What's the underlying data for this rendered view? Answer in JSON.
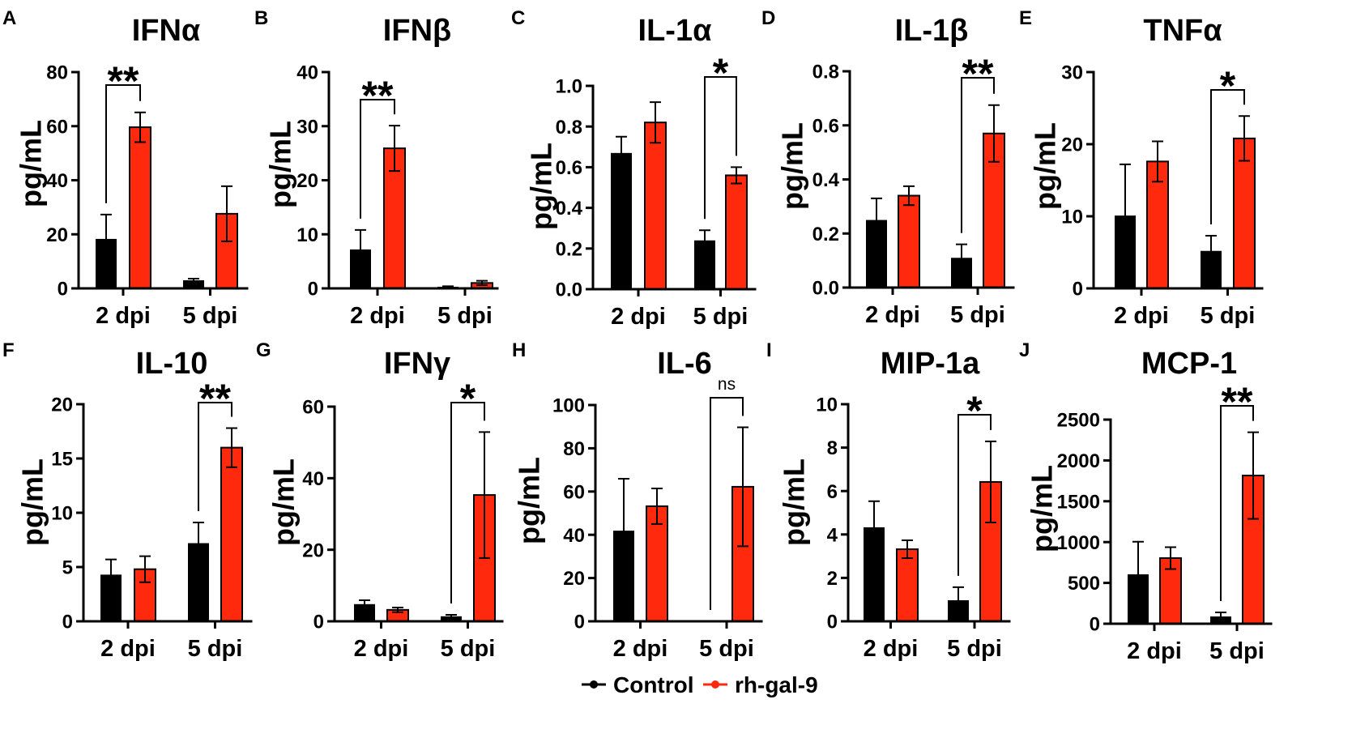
{
  "legend": [
    {
      "name": "Control",
      "color": "#000000"
    },
    {
      "name": "rh-gal-9",
      "color": "#FF2A0D"
    }
  ],
  "chart_data": [
    {
      "panel": "A",
      "type": "bar",
      "title": "IFNα",
      "ylabel": "pg/mL",
      "categories": [
        "2 dpi",
        "5 dpi"
      ],
      "ylim": [
        0,
        80
      ],
      "yticks": [
        "0",
        "20",
        "40",
        "60",
        "80"
      ],
      "series": [
        {
          "name": "Control",
          "values": [
            18.3,
            3.0
          ],
          "errors": [
            9.0,
            0.6
          ]
        },
        {
          "name": "rh-gal-9",
          "values": [
            59.6,
            27.6
          ],
          "errors": [
            5.5,
            10.2
          ]
        }
      ],
      "significance": [
        {
          "category": "2 dpi",
          "label": "**"
        }
      ]
    },
    {
      "panel": "B",
      "type": "bar",
      "title": "IFNβ",
      "ylabel": "pg/mL",
      "categories": [
        "2 dpi",
        "5 dpi"
      ],
      "ylim": [
        0,
        40
      ],
      "yticks": [
        "0",
        "10",
        "20",
        "30",
        "40"
      ],
      "series": [
        {
          "name": "Control",
          "values": [
            7.2,
            0.3
          ],
          "errors": [
            3.6,
            0.1
          ]
        },
        {
          "name": "rh-gal-9",
          "values": [
            25.9,
            1.0
          ],
          "errors": [
            4.2,
            0.4
          ]
        }
      ],
      "significance": [
        {
          "category": "2 dpi",
          "label": "**"
        }
      ]
    },
    {
      "panel": "C",
      "type": "bar",
      "title": "IL-1α",
      "ylabel": "pg/mL",
      "categories": [
        "2 dpi",
        "5 dpi"
      ],
      "ylim": [
        0,
        1.0
      ],
      "yticks": [
        "0.0",
        "0.2",
        "0.4",
        "0.6",
        "0.8",
        "1.0"
      ],
      "series": [
        {
          "name": "Control",
          "values": [
            0.67,
            0.24
          ],
          "errors": [
            0.08,
            0.05
          ]
        },
        {
          "name": "rh-gal-9",
          "values": [
            0.82,
            0.56
          ],
          "errors": [
            0.1,
            0.04
          ]
        }
      ],
      "significance": [
        {
          "category": "5 dpi",
          "label": "*"
        }
      ]
    },
    {
      "panel": "D",
      "type": "bar",
      "title": "IL-1β",
      "ylabel": "pg/mL",
      "categories": [
        "2 dpi",
        "5 dpi"
      ],
      "ylim": [
        0,
        0.8
      ],
      "yticks": [
        "0.0",
        "0.2",
        "0.4",
        "0.6",
        "0.8"
      ],
      "series": [
        {
          "name": "Control",
          "values": [
            0.25,
            0.11
          ],
          "errors": [
            0.08,
            0.05
          ]
        },
        {
          "name": "rh-gal-9",
          "values": [
            0.34,
            0.57
          ],
          "errors": [
            0.035,
            0.105
          ]
        }
      ],
      "significance": [
        {
          "category": "5 dpi",
          "label": "**"
        }
      ]
    },
    {
      "panel": "E",
      "type": "bar",
      "title": "TNFα",
      "ylabel": "pg/mL",
      "categories": [
        "2 dpi",
        "5 dpi"
      ],
      "ylim": [
        0,
        30
      ],
      "yticks": [
        "0",
        "10",
        "20",
        "30"
      ],
      "series": [
        {
          "name": "Control",
          "values": [
            10.1,
            5.2
          ],
          "errors": [
            7.1,
            2.1
          ]
        },
        {
          "name": "rh-gal-9",
          "values": [
            17.6,
            20.8
          ],
          "errors": [
            2.8,
            3.1
          ]
        }
      ],
      "significance": [
        {
          "category": "5 dpi",
          "label": "*"
        }
      ]
    },
    {
      "panel": "F",
      "type": "bar",
      "title": "IL-10",
      "ylabel": "pg/mL",
      "categories": [
        "2 dpi",
        "5 dpi"
      ],
      "ylim": [
        0,
        20
      ],
      "yticks": [
        "0",
        "5",
        "10",
        "15",
        "20"
      ],
      "series": [
        {
          "name": "Control",
          "values": [
            4.3,
            7.2
          ],
          "errors": [
            1.4,
            1.9
          ]
        },
        {
          "name": "rh-gal-9",
          "values": [
            4.8,
            16.0
          ],
          "errors": [
            1.2,
            1.8
          ]
        }
      ],
      "significance": [
        {
          "category": "5 dpi",
          "label": "**"
        }
      ]
    },
    {
      "panel": "G",
      "type": "bar",
      "title": "IFNγ",
      "ylabel": "pg/mL",
      "categories": [
        "2 dpi",
        "5 dpi"
      ],
      "ylim": [
        0,
        60
      ],
      "yticks": [
        "0",
        "20",
        "40",
        "60"
      ],
      "series": [
        {
          "name": "Control",
          "values": [
            4.8,
            1.4
          ],
          "errors": [
            1.1,
            0.4
          ]
        },
        {
          "name": "rh-gal-9",
          "values": [
            3.2,
            35.3
          ],
          "errors": [
            0.65,
            17.6
          ]
        }
      ],
      "significance": [
        {
          "category": "5 dpi",
          "label": "*"
        }
      ]
    },
    {
      "panel": "H",
      "type": "bar",
      "title": "IL-6",
      "ylabel": "pg/mL",
      "categories": [
        "2 dpi",
        "5 dpi"
      ],
      "ylim": [
        0,
        100
      ],
      "yticks": [
        "0",
        "20",
        "40",
        "60",
        "80",
        "100"
      ],
      "series": [
        {
          "name": "Control",
          "values": [
            41.9,
            0
          ],
          "errors": [
            24.0,
            0
          ]
        },
        {
          "name": "rh-gal-9",
          "values": [
            53.2,
            62.2
          ],
          "errors": [
            8.2,
            27.5
          ]
        }
      ],
      "significance": [
        {
          "category": "5 dpi",
          "label": "ns"
        }
      ]
    },
    {
      "panel": "I",
      "type": "bar",
      "title": "MIP-1a",
      "ylabel": "pg/mL",
      "categories": [
        "2 dpi",
        "5 dpi"
      ],
      "ylim": [
        0,
        10
      ],
      "yticks": [
        "0",
        "2",
        "4",
        "6",
        "8",
        "10"
      ],
      "series": [
        {
          "name": "Control",
          "values": [
            4.33,
            0.97
          ],
          "errors": [
            1.2,
            0.6
          ]
        },
        {
          "name": "rh-gal-9",
          "values": [
            3.32,
            6.42
          ],
          "errors": [
            0.41,
            1.87
          ]
        }
      ],
      "significance": [
        {
          "category": "5 dpi",
          "label": "*"
        }
      ]
    },
    {
      "panel": "J",
      "type": "bar",
      "title": "MCP-1",
      "ylabel": "pg/mL",
      "categories": [
        "2 dpi",
        "5 dpi"
      ],
      "ylim": [
        0,
        2500
      ],
      "yticks": [
        "0",
        "500",
        "1000",
        "1500",
        "2000",
        "2500"
      ],
      "series": [
        {
          "name": "Control",
          "values": [
            605,
            89
          ],
          "errors": [
            400,
            50
          ]
        },
        {
          "name": "rh-gal-9",
          "values": [
            804,
            1815
          ],
          "errors": [
            134,
            530
          ]
        }
      ],
      "significance": [
        {
          "category": "5 dpi",
          "label": "**"
        }
      ]
    }
  ]
}
